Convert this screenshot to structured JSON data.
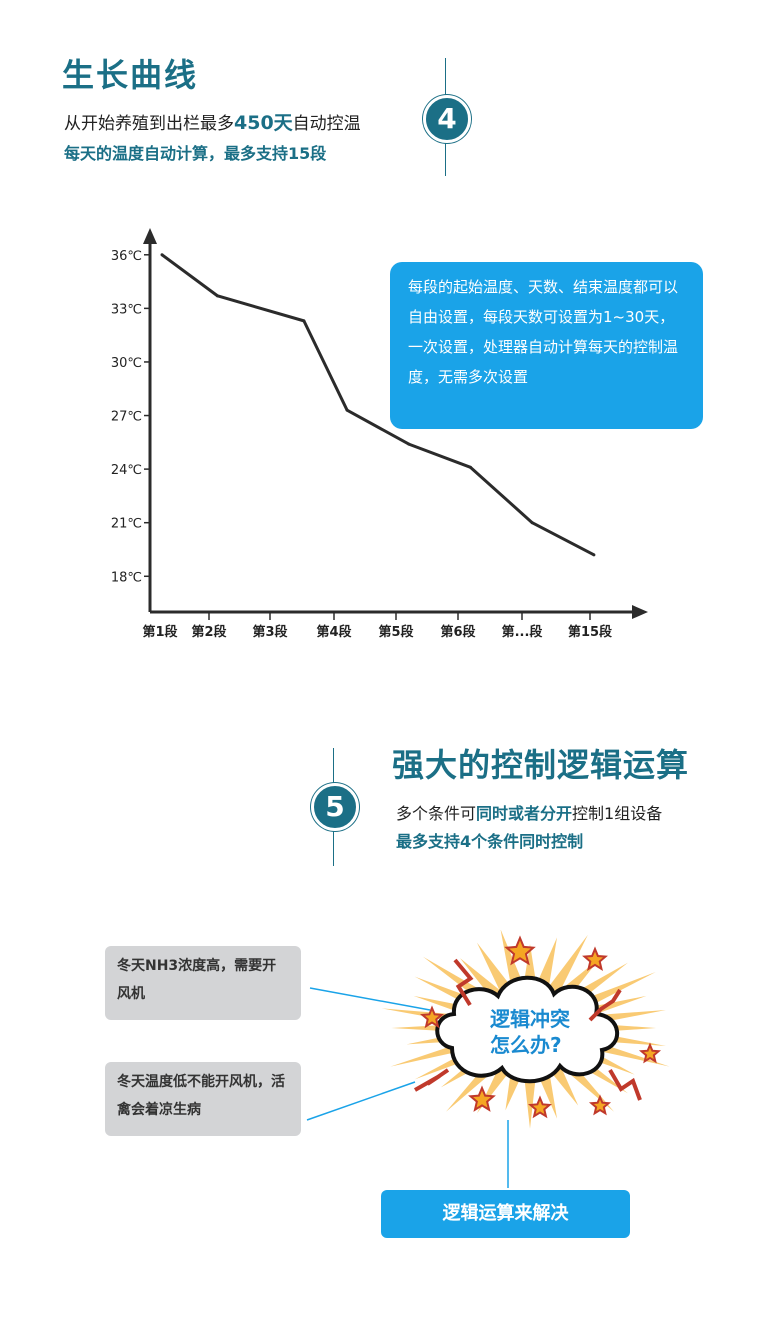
{
  "section4": {
    "title": "生长曲线",
    "line1_prefix": "从开始养殖到出栏最多",
    "line1_highlight": "450天",
    "line1_suffix": "自动控温",
    "line2": "每天的温度自动计算，最多支持15段",
    "badge": "4"
  },
  "chart_note": "每段的起始温度、天数、结束温度都可以自由设置，每段天数可设置为1~30天，一次设置，处理器自动计算每天的控制温度，无需多次设置",
  "chart_data": {
    "type": "line",
    "title": "",
    "xlabel": "",
    "ylabel": "",
    "categories": [
      "第1段",
      "第2段",
      "第3段",
      "第4段",
      "第5段",
      "第6段",
      "第...段",
      "第15段"
    ],
    "y_ticks": [
      "36℃",
      "33℃",
      "30℃",
      "27℃",
      "24℃",
      "21℃",
      "18℃"
    ],
    "y_tick_values": [
      36,
      33,
      30,
      27,
      24,
      21,
      18
    ],
    "ylim": [
      16,
      37.5
    ],
    "series": [
      {
        "x": [
          0.0,
          0.9,
          2.3,
          3.0,
          4.0,
          5.0,
          6.0,
          7.0
        ],
        "values": [
          36,
          33.7,
          32.3,
          27.3,
          25.4,
          24.1,
          21.0,
          19.2
        ]
      }
    ],
    "color": "#2b2b2b"
  },
  "section5": {
    "badge": "5",
    "title": "强大的控制逻辑运算",
    "line1_prefix": "多个条件可",
    "line1_highlight": "同时或者分开",
    "line1_suffix": "控制1组设备",
    "line2": "最多支持4个条件同时控制"
  },
  "conditions": [
    "冬天NH3浓度高，需要开风机",
    "冬天温度低不能开风机，活禽会着凉生病"
  ],
  "conflict_text_1": "逻辑冲突",
  "conflict_text_2": "怎么办?",
  "solve_button": "逻辑运算来解决",
  "colors": {
    "teal": "#1b6f86",
    "blue": "#1aa3e8",
    "gray": "#d3d4d6"
  }
}
